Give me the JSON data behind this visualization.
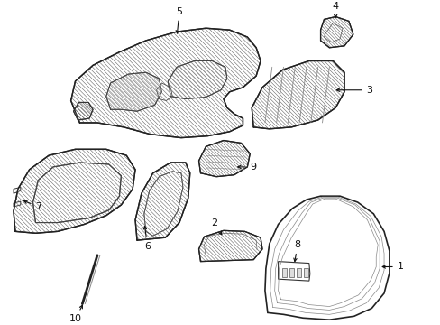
{
  "bg_color": "#ffffff",
  "line_color": "#222222",
  "figsize": [
    4.89,
    3.6
  ],
  "dpi": 100,
  "parts": {
    "layout": "isometric technical diagram with 10 numbered automotive parts"
  }
}
